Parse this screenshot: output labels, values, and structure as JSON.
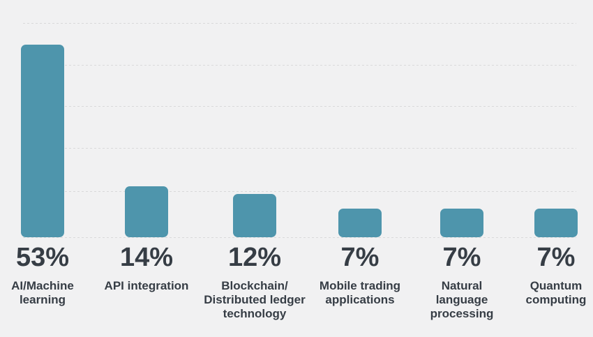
{
  "colors": {
    "background": "#f1f1f2",
    "bar": "#4e95ac",
    "text": "#363d45",
    "gridline": "#d9d9da"
  },
  "chart_data": {
    "type": "bar",
    "categories": [
      "AI/Machine\nlearning",
      "API integration",
      "Blockchain/\nDistributed ledger\ntechnology",
      "Mobile trading\napplications",
      "Natural\nlanguage\nprocessing",
      "Quantum\ncomputing"
    ],
    "values": [
      53,
      14,
      12,
      7,
      7,
      7
    ],
    "value_labels": [
      "53%",
      "14%",
      "12%",
      "7%",
      "7%",
      "7%"
    ],
    "title": "",
    "xlabel": "",
    "ylabel": "",
    "ylim": [
      0,
      55
    ],
    "grid": "horizontal-dashed",
    "gridline_count": 6,
    "legend": "none",
    "bar_color": "#4e95ac",
    "label_position": "below-bars"
  }
}
